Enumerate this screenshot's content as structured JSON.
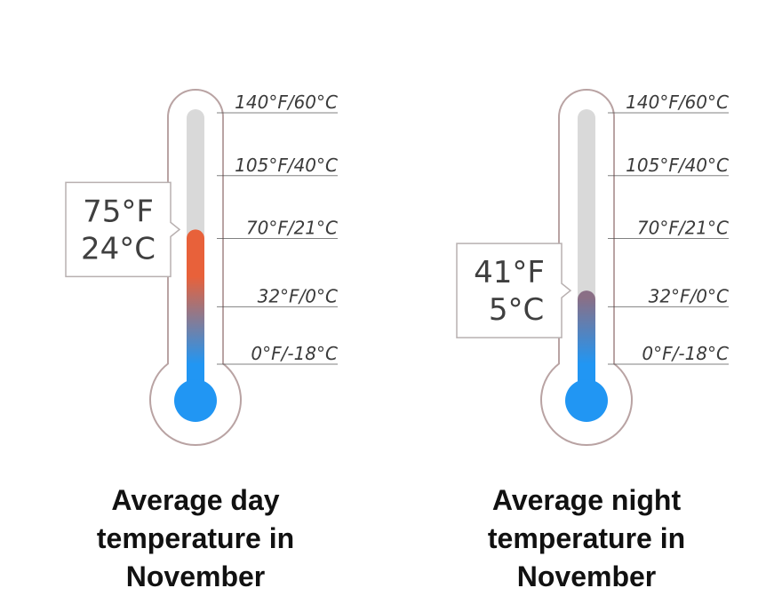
{
  "chart_data": [
    {
      "type": "thermometer",
      "title": [
        "Average day",
        "temperature in",
        "November"
      ],
      "value_f": 75,
      "value_c": 24,
      "callout": [
        "75°F",
        "24°C"
      ],
      "ticks": [
        {
          "f": 140,
          "label": "140°F/60°C"
        },
        {
          "f": 105,
          "label": "105°F/40°C"
        },
        {
          "f": 70,
          "label": "70°F/21°C"
        },
        {
          "f": 32,
          "label": "32°F/0°C"
        },
        {
          "f": 0,
          "label": "0°F/-18°C"
        }
      ],
      "scale_f": [
        0,
        140
      ]
    },
    {
      "type": "thermometer",
      "title": [
        "Average night",
        "temperature in",
        "November"
      ],
      "value_f": 41,
      "value_c": 5,
      "callout": [
        "41°F",
        "5°C"
      ],
      "ticks": [
        {
          "f": 140,
          "label": "140°F/60°C"
        },
        {
          "f": 105,
          "label": "105°F/40°C"
        },
        {
          "f": 70,
          "label": "70°F/21°C"
        },
        {
          "f": 32,
          "label": "32°F/0°C"
        },
        {
          "f": 0,
          "label": "0°F/-18°C"
        }
      ],
      "scale_f": [
        0,
        140
      ]
    }
  ],
  "colors": {
    "outline": "#b9a3a3",
    "track": "#d9d9d9",
    "cold": "#2196f3",
    "warm": "#e8613a",
    "mid": "#8a6f86",
    "tick_line": "#4a4a4a",
    "callout_border": "#b8b0b0"
  }
}
